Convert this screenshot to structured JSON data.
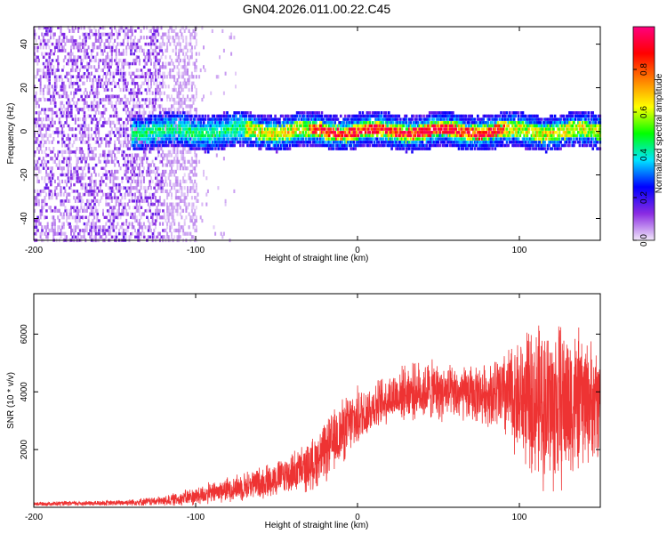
{
  "title": "GN04.2026.011.00.22.C45",
  "chart_data": [
    {
      "type": "heatmap",
      "xlabel": "Height of straight line (km)",
      "ylabel": "Frequency (Hz)",
      "xlim": [
        -200,
        150
      ],
      "ylim": [
        -50,
        48
      ],
      "xticks": [
        -200,
        -100,
        0,
        100
      ],
      "yticks": [
        -40,
        -20,
        0,
        20,
        40
      ],
      "colorbar": {
        "label": "Normalized spectral amplitude",
        "range": [
          0,
          1
        ],
        "ticks": [
          0.0,
          0.2,
          0.4,
          0.6,
          0.8
        ],
        "tick_labels": [
          "0.0",
          "0.2",
          "0.4",
          "0.6",
          "0.8"
        ],
        "colors": [
          "#f2e8fa",
          "#8a2be2",
          "#0000ff",
          "#00e5ff",
          "#00ff00",
          "#ffff00",
          "#ff8000",
          "#ff0000",
          "#ff007f"
        ]
      },
      "band": {
        "center_hz": 0,
        "halfwidth_hz": 8,
        "noise_region_x": [
          -200,
          -100
        ],
        "band_start_x": -140,
        "peak_region_x": [
          -30,
          90
        ],
        "peak_amplitude": 0.95
      }
    },
    {
      "type": "line",
      "xlabel": "Height of straight line (km)",
      "ylabel": "SNR (10 * v/v)",
      "xlim": [
        -200,
        150
      ],
      "ylim": [
        0,
        7400
      ],
      "xticks": [
        -200,
        -100,
        0,
        100
      ],
      "yticks": [
        2000,
        4000,
        6000
      ],
      "color": "#ee3333",
      "envelope": {
        "x": [
          -200,
          -150,
          -120,
          -100,
          -80,
          -60,
          -45,
          -30,
          -20,
          -10,
          0,
          10,
          20,
          30,
          45,
          60,
          80,
          100,
          110,
          120,
          130,
          140,
          150
        ],
        "mean": [
          120,
          150,
          220,
          380,
          620,
          850,
          1100,
          1400,
          1900,
          2600,
          3100,
          3500,
          3800,
          4000,
          4050,
          3900,
          3950,
          3800,
          3650,
          3500,
          3600,
          3700,
          3600
        ],
        "spread": [
          80,
          100,
          180,
          350,
          450,
          600,
          700,
          900,
          1100,
          1200,
          1100,
          900,
          900,
          1000,
          1100,
          1000,
          1100,
          2200,
          2800,
          3200,
          3000,
          2400,
          2000
        ]
      }
    }
  ]
}
